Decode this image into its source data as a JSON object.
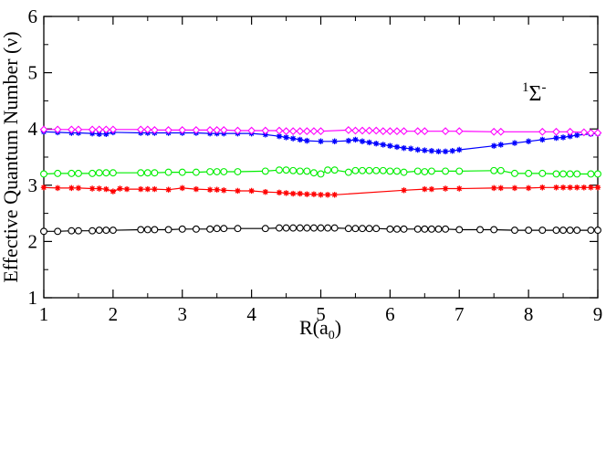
{
  "chart_data": {
    "type": "line",
    "title": "",
    "xlabel": "R(a",
    "xlabel_sub": "0",
    "xlabel_close": ")",
    "ylabel": "Effective Quantum Number (ν)",
    "xlim": [
      1,
      9
    ],
    "ylim": [
      1,
      6
    ],
    "xticks": [
      1,
      2,
      3,
      4,
      5,
      6,
      7,
      8,
      9
    ],
    "yticks": [
      1,
      2,
      3,
      4,
      5,
      6
    ],
    "grid": false,
    "annotation": {
      "sup": "1",
      "main": "Σ",
      "sup2": "-"
    },
    "series": [
      {
        "name": "series-1",
        "color": "#000000",
        "marker": "circle",
        "x": [
          1.0,
          1.2,
          1.4,
          1.5,
          1.7,
          1.8,
          1.9,
          2.0,
          2.4,
          2.5,
          2.6,
          2.8,
          3.0,
          3.2,
          3.4,
          3.5,
          3.6,
          3.8,
          4.2,
          4.4,
          4.5,
          4.6,
          4.7,
          4.8,
          4.9,
          5.0,
          5.1,
          5.2,
          5.4,
          5.5,
          5.6,
          5.7,
          5.8,
          6.0,
          6.1,
          6.2,
          6.4,
          6.5,
          6.6,
          6.7,
          6.8,
          7.0,
          7.3,
          7.5,
          7.8,
          8.0,
          8.2,
          8.4,
          8.5,
          8.6,
          8.7,
          8.9,
          9.0
        ],
        "y": [
          2.18,
          2.18,
          2.19,
          2.19,
          2.19,
          2.2,
          2.2,
          2.2,
          2.21,
          2.21,
          2.21,
          2.21,
          2.22,
          2.22,
          2.22,
          2.23,
          2.23,
          2.23,
          2.23,
          2.24,
          2.24,
          2.24,
          2.24,
          2.24,
          2.24,
          2.24,
          2.24,
          2.24,
          2.23,
          2.23,
          2.23,
          2.23,
          2.23,
          2.22,
          2.22,
          2.22,
          2.22,
          2.22,
          2.22,
          2.22,
          2.22,
          2.21,
          2.21,
          2.21,
          2.2,
          2.2,
          2.2,
          2.2,
          2.2,
          2.2,
          2.2,
          2.2,
          2.2
        ]
      },
      {
        "name": "series-2",
        "color": "#ff0000",
        "marker": "star",
        "x": [
          1.0,
          1.2,
          1.4,
          1.5,
          1.7,
          1.8,
          1.9,
          2.0,
          2.1,
          2.2,
          2.4,
          2.5,
          2.6,
          2.8,
          3.0,
          3.2,
          3.4,
          3.5,
          3.6,
          3.8,
          4.0,
          4.2,
          4.4,
          4.5,
          4.6,
          4.7,
          4.8,
          4.9,
          5.0,
          5.1,
          5.2,
          6.2,
          6.5,
          6.6,
          6.8,
          7.0,
          7.5,
          7.6,
          7.8,
          8.0,
          8.2,
          8.4,
          8.5,
          8.6,
          8.7,
          8.8,
          8.9,
          9.0
        ],
        "y": [
          2.96,
          2.95,
          2.95,
          2.95,
          2.94,
          2.94,
          2.93,
          2.89,
          2.94,
          2.93,
          2.93,
          2.93,
          2.93,
          2.92,
          2.95,
          2.93,
          2.92,
          2.92,
          2.91,
          2.9,
          2.9,
          2.88,
          2.87,
          2.86,
          2.85,
          2.85,
          2.84,
          2.84,
          2.83,
          2.83,
          2.83,
          2.91,
          2.93,
          2.93,
          2.94,
          2.94,
          2.95,
          2.95,
          2.95,
          2.95,
          2.96,
          2.96,
          2.96,
          2.96,
          2.96,
          2.96,
          2.96,
          2.96
        ]
      },
      {
        "name": "series-3",
        "color": "#00ee00",
        "marker": "circle",
        "x": [
          1.0,
          1.2,
          1.4,
          1.5,
          1.7,
          1.8,
          1.9,
          2.0,
          2.4,
          2.5,
          2.6,
          2.8,
          3.0,
          3.2,
          3.4,
          3.5,
          3.6,
          3.8,
          4.2,
          4.4,
          4.5,
          4.6,
          4.7,
          4.8,
          4.9,
          5.0,
          5.1,
          5.2,
          5.4,
          5.5,
          5.6,
          5.7,
          5.8,
          5.9,
          6.0,
          6.1,
          6.2,
          6.4,
          6.5,
          6.6,
          6.8,
          7.0,
          7.5,
          7.6,
          7.8,
          8.0,
          8.2,
          8.4,
          8.5,
          8.6,
          8.7,
          8.9,
          9.0
        ],
        "y": [
          3.2,
          3.21,
          3.21,
          3.21,
          3.21,
          3.22,
          3.22,
          3.22,
          3.22,
          3.22,
          3.22,
          3.23,
          3.23,
          3.23,
          3.24,
          3.24,
          3.24,
          3.24,
          3.25,
          3.27,
          3.27,
          3.26,
          3.25,
          3.25,
          3.22,
          3.2,
          3.27,
          3.27,
          3.23,
          3.26,
          3.26,
          3.26,
          3.26,
          3.26,
          3.25,
          3.25,
          3.23,
          3.25,
          3.24,
          3.25,
          3.25,
          3.25,
          3.26,
          3.26,
          3.21,
          3.21,
          3.21,
          3.2,
          3.2,
          3.2,
          3.2,
          3.2,
          3.2
        ]
      },
      {
        "name": "series-4",
        "color": "#0000ff",
        "marker": "star",
        "x": [
          1.0,
          1.2,
          1.4,
          1.5,
          1.7,
          1.8,
          1.9,
          2.0,
          2.4,
          2.5,
          2.6,
          2.8,
          3.0,
          3.2,
          3.4,
          3.5,
          3.6,
          3.8,
          4.0,
          4.2,
          4.4,
          4.5,
          4.6,
          4.7,
          4.8,
          5.0,
          5.2,
          5.4,
          5.5,
          5.6,
          5.7,
          5.8,
          5.9,
          6.0,
          6.1,
          6.2,
          6.3,
          6.4,
          6.5,
          6.6,
          6.7,
          6.8,
          6.9,
          7.0,
          7.5,
          7.6,
          7.8,
          8.0,
          8.2,
          8.4,
          8.5,
          8.6,
          8.7,
          8.9,
          9.0
        ],
        "y": [
          3.95,
          3.94,
          3.93,
          3.93,
          3.92,
          3.91,
          3.91,
          3.94,
          3.93,
          3.93,
          3.93,
          3.93,
          3.93,
          3.93,
          3.92,
          3.92,
          3.92,
          3.92,
          3.92,
          3.9,
          3.87,
          3.85,
          3.83,
          3.81,
          3.79,
          3.78,
          3.78,
          3.79,
          3.81,
          3.78,
          3.76,
          3.74,
          3.72,
          3.7,
          3.68,
          3.66,
          3.65,
          3.63,
          3.62,
          3.61,
          3.6,
          3.6,
          3.61,
          3.63,
          3.7,
          3.72,
          3.75,
          3.78,
          3.81,
          3.84,
          3.85,
          3.87,
          3.89,
          3.91,
          3.92
        ]
      },
      {
        "name": "series-5",
        "color": "#ff00ff",
        "marker": "diamond",
        "x": [
          1.0,
          1.2,
          1.4,
          1.5,
          1.7,
          1.8,
          1.9,
          2.0,
          2.4,
          2.5,
          2.6,
          2.8,
          3.0,
          3.2,
          3.4,
          3.5,
          3.6,
          3.8,
          4.0,
          4.2,
          4.4,
          4.5,
          4.6,
          4.7,
          4.8,
          4.9,
          5.0,
          5.4,
          5.5,
          5.6,
          5.7,
          5.8,
          5.9,
          6.0,
          6.1,
          6.2,
          6.4,
          6.5,
          6.8,
          7.0,
          7.5,
          7.6,
          8.2,
          8.4,
          8.6,
          8.8,
          8.9,
          9.0
        ],
        "y": [
          3.99,
          3.99,
          3.99,
          3.99,
          3.99,
          3.99,
          3.99,
          3.99,
          3.99,
          3.99,
          3.98,
          3.98,
          3.98,
          3.98,
          3.98,
          3.98,
          3.98,
          3.97,
          3.97,
          3.97,
          3.97,
          3.96,
          3.96,
          3.96,
          3.96,
          3.96,
          3.96,
          3.98,
          3.97,
          3.97,
          3.97,
          3.97,
          3.96,
          3.96,
          3.96,
          3.96,
          3.96,
          3.96,
          3.96,
          3.96,
          3.95,
          3.95,
          3.95,
          3.95,
          3.95,
          3.94,
          3.93,
          3.93
        ]
      }
    ]
  }
}
